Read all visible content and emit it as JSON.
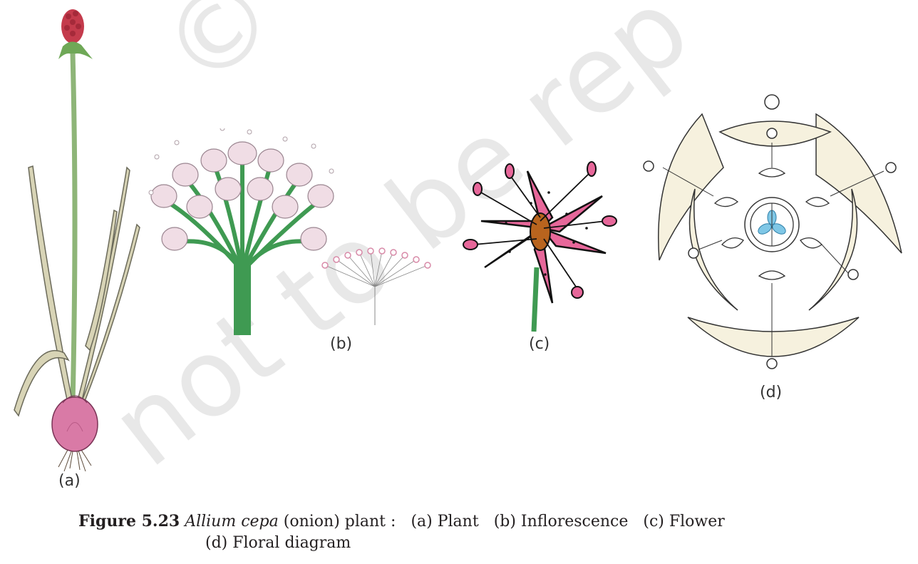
{
  "watermark_text": "© NCERT not to be republished",
  "panels": {
    "a": {
      "label": "(a)"
    },
    "b": {
      "label": "(b)"
    },
    "c": {
      "label": "(c)"
    },
    "d": {
      "label": "(d)"
    }
  },
  "caption": {
    "figure_no": "Figure 5.23",
    "species": "Allium cepa",
    "rest": "(onion) plant :",
    "items": [
      "(a) Plant",
      "(b) Inflorescence",
      "(c) Flower",
      "(d) Floral diagram"
    ]
  },
  "colors": {
    "leaf": "#d8d4b6",
    "stem": "#3f9a52",
    "bulb": "#d97aa6",
    "petal_pink": "#e7679a",
    "floral_cream": "#f6f1de",
    "ovary_blue": "#7fc7e6"
  }
}
